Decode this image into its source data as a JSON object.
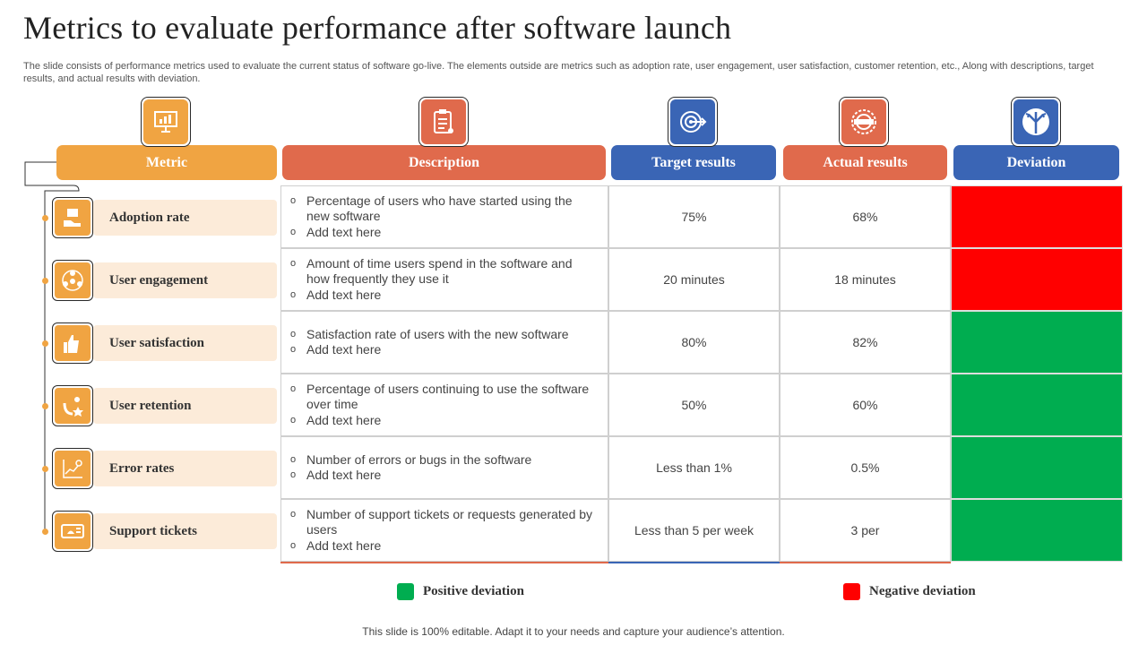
{
  "title": "Metrics to evaluate performance after software launch",
  "subtitle": "The slide consists of performance metrics used to evaluate the current status of software go-live. The elements outside are metrics such as adoption rate, user engagement, user satisfaction, customer retention, etc., Along with descriptions, target results, and actual results with deviation.",
  "colors": {
    "orange": "#f0a442",
    "red_orange": "#e06a4c",
    "blue": "#3a65b5",
    "positive": "#00ad50",
    "negative": "#ff0000",
    "row_bg": "#fcebd9"
  },
  "headers": {
    "metric": "Metric",
    "description": "Description",
    "target": "Target results",
    "actual": "Actual results",
    "deviation": "Deviation"
  },
  "header_icons": [
    "presentation-chart-icon",
    "clipboard-checklist-icon",
    "target-arrow-icon",
    "seal-badge-icon",
    "fork-arrows-icon"
  ],
  "rows": [
    {
      "metric": "Adoption rate",
      "icon": "hand-box-icon",
      "desc1": "Percentage of users who have started using the new software",
      "desc2": "Add text here",
      "target": "75%",
      "actual": "68%",
      "deviation": "negative"
    },
    {
      "metric": "User engagement",
      "icon": "people-network-icon",
      "desc1": "Amount of time users spend in the software and how frequently they use it",
      "desc2": "Add text here",
      "target": "20 minutes",
      "actual": "18 minutes",
      "deviation": "negative"
    },
    {
      "metric": "User satisfaction",
      "icon": "thumbs-up-group-icon",
      "desc1": "Satisfaction rate of users with the new software",
      "desc2": "Add text here",
      "target": "80%",
      "actual": "82%",
      "deviation": "positive"
    },
    {
      "metric": "User retention",
      "icon": "magnet-star-icon",
      "desc1": "Percentage of users continuing to use the software over time",
      "desc2": "Add text here",
      "target": "50%",
      "actual": "60%",
      "deviation": "positive"
    },
    {
      "metric": "Error rates",
      "icon": "line-graph-icon",
      "desc1": "Number of errors or bugs in the software",
      "desc2": "Add text here",
      "target": "Less than 1%",
      "actual": "0.5%",
      "deviation": "positive"
    },
    {
      "metric": "Support tickets",
      "icon": "ticket-icon",
      "desc1": "Number of support tickets or requests generated by users",
      "desc2": "Add text here",
      "target": "Less than 5 per week",
      "actual": "3 per",
      "deviation": "positive"
    }
  ],
  "legend": {
    "positive": "Positive deviation",
    "negative": "Negative deviation"
  },
  "footer": "This slide is 100% editable. Adapt it to your needs and capture your audience’s attention."
}
